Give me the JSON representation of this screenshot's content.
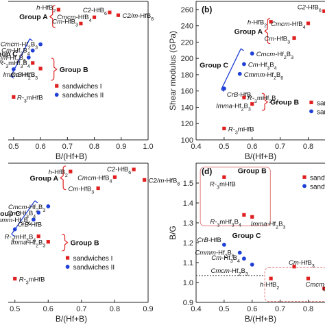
{
  "legend": {
    "sandwiches_1": "sandwiches I",
    "sandwiches_2": "sandwiches II"
  },
  "group_labels": {
    "a": "Group A",
    "b": "Group B",
    "c": "Group C"
  },
  "colors": {
    "sandwiches_1": "#e02020",
    "sandwiches_2": "#1f3fd6",
    "bracket_a_b": "#e02020",
    "bracket_c": "#1f3fd6",
    "box": "#e07a7a",
    "axis": "#222222"
  },
  "chart_data": [
    {
      "id": "a",
      "type": "scatter",
      "panel_label": "",
      "xlabel": "B/(Hf+B)",
      "ylabel": "",
      "xlim": [
        0.48,
        1.0
      ],
      "ylim": [
        0,
        10
      ],
      "x_ticks": [
        "0.5",
        "0.6",
        "0.7",
        "0.8",
        "0.9",
        "1.0"
      ],
      "y_ticks": [],
      "groups": [
        {
          "label": "Group A"
        },
        {
          "label": "Group C"
        },
        {
          "label": "Group B"
        }
      ],
      "points": [
        {
          "label": "h-HfB2",
          "x": 0.667,
          "y": 9.4,
          "series": "sandwiches I"
        },
        {
          "label": "C2-HfB6",
          "x": 0.857,
          "y": 9.2,
          "series": "sandwiches I"
        },
        {
          "label": "C2/m-HfB8",
          "x": 0.889,
          "y": 9.0,
          "series": "sandwiches I"
        },
        {
          "label": "Cmcm-HfB4",
          "x": 0.8,
          "y": 8.85,
          "series": "sandwiches I"
        },
        {
          "label": "Cm-HfB3",
          "x": 0.75,
          "y": 8.4,
          "series": "sandwiches I"
        },
        {
          "label": "Cmcm-Hf2B3",
          "x": 0.6,
          "y": 6.9,
          "series": "sandwiches II"
        },
        {
          "label": "Cm-Hf3B4",
          "x": 0.571,
          "y": 6.45,
          "series": "sandwiches II"
        },
        {
          "label": "Cmmm-Hf2B6",
          "x": 0.556,
          "y": 5.95,
          "series": "sandwiches II"
        },
        {
          "label": "R-3m-Hf3B4",
          "x": 0.571,
          "y": 5.55,
          "series": "sandwiches I"
        },
        {
          "label": "CrB-HfB",
          "x": 0.5,
          "y": 5.1,
          "series": "sandwiches II"
        },
        {
          "label": "Imma-Hf2B3",
          "x": 0.6,
          "y": 5.15,
          "series": "sandwiches I"
        },
        {
          "label": "R-3m-HfB",
          "x": 0.5,
          "y": 3.1,
          "series": "sandwiches I"
        }
      ]
    },
    {
      "id": "b",
      "type": "scatter",
      "panel_label": "(b)",
      "xlabel": "B/(Hf+B)",
      "ylabel": "Shear modulus (GPa)",
      "xlim": [
        0.4,
        0.86
      ],
      "ylim": [
        100,
        270
      ],
      "x_ticks": [
        "0.4",
        "0.5",
        "0.6",
        "0.7",
        "0.8"
      ],
      "y_ticks": [
        "100",
        "120",
        "140",
        "160",
        "180",
        "200",
        "220",
        "240",
        "260"
      ],
      "groups": [
        {
          "label": "Group A"
        },
        {
          "label": "Group C"
        },
        {
          "label": "Group B"
        }
      ],
      "legend_visible": [
        "sar",
        "sar"
      ],
      "points": [
        {
          "label": "C2-HfB6",
          "x": 0.857,
          "y": 258,
          "series": "sandwiches I"
        },
        {
          "label": "h-HfB2",
          "x": 0.667,
          "y": 245,
          "series": "sandwiches I"
        },
        {
          "label": "Cmcm-HfB4",
          "x": 0.8,
          "y": 243,
          "series": "sandwiches I"
        },
        {
          "label": "Cm-HfB3",
          "x": 0.75,
          "y": 225,
          "series": "sandwiches I"
        },
        {
          "label": "Cmcm-Hf2B3",
          "x": 0.6,
          "y": 206,
          "series": "sandwiches II"
        },
        {
          "label": "Cm-Hf3B4",
          "x": 0.571,
          "y": 193,
          "series": "sandwiches II"
        },
        {
          "label": "Cmmm-Hf2B6",
          "x": 0.556,
          "y": 181,
          "series": "sandwiches II"
        },
        {
          "label": "CrB-HfB",
          "x": 0.5,
          "y": 163,
          "series": "sandwiches II"
        },
        {
          "label": "R-3m-Hf3B4",
          "x": 0.571,
          "y": 152,
          "series": "sandwiches I"
        },
        {
          "label": "Imma-Hf2B3",
          "x": 0.6,
          "y": 144,
          "series": "sandwiches I"
        },
        {
          "label": "R-3m-HfB",
          "x": 0.5,
          "y": 114,
          "series": "sandwiches I"
        }
      ]
    },
    {
      "id": "c",
      "type": "scatter",
      "panel_label": "",
      "xlabel": "B/(Hf+B)",
      "ylabel": "",
      "xlim": [
        0.48,
        0.9
      ],
      "ylim": [
        0,
        10
      ],
      "x_ticks": [
        "0.5",
        "0.6",
        "0.7",
        "0.8",
        "0.9"
      ],
      "y_ticks": [],
      "groups": [
        {
          "label": "Group A"
        },
        {
          "label": "Group C"
        },
        {
          "label": "Group B"
        }
      ],
      "points": [
        {
          "label": "h-HfB2",
          "x": 0.667,
          "y": 9.4,
          "series": "sandwiches I"
        },
        {
          "label": "C2-HfB6",
          "x": 0.857,
          "y": 9.55,
          "series": "sandwiches I"
        },
        {
          "label": "Cmcm-HfB4",
          "x": 0.8,
          "y": 9.0,
          "series": "sandwiches I"
        },
        {
          "label": "C2/m-HfB8",
          "x": 0.889,
          "y": 8.8,
          "series": "sandwiches I"
        },
        {
          "label": "Cm-HfB3",
          "x": 0.75,
          "y": 8.2,
          "series": "sandwiches I"
        },
        {
          "label": "Cmcm-Hf2B3",
          "x": 0.6,
          "y": 6.9,
          "series": "sandwiches II"
        },
        {
          "label": "Cm-Hf3B4",
          "x": 0.571,
          "y": 6.45,
          "series": "sandwiches II"
        },
        {
          "label": "Cmmm-Hf2B6",
          "x": 0.556,
          "y": 5.95,
          "series": "sandwiches II"
        },
        {
          "label": "CrB-HfB",
          "x": 0.5,
          "y": 5.25,
          "series": "sandwiches II"
        },
        {
          "label": "R-3m-Hf3B4",
          "x": 0.571,
          "y": 4.75,
          "series": "sandwiches I"
        },
        {
          "label": "Imma-Hf2B3",
          "x": 0.6,
          "y": 4.35,
          "series": "sandwiches I"
        },
        {
          "label": "R-3m-HfB",
          "x": 0.5,
          "y": 1.7,
          "series": "sandwiches I"
        }
      ]
    },
    {
      "id": "d",
      "type": "scatter",
      "panel_label": "(d)",
      "xlabel": "B/(Hf+B)",
      "ylabel": "B/G",
      "xlim": [
        0.4,
        0.86
      ],
      "ylim": [
        0.9,
        1.6
      ],
      "x_ticks": [
        "0.4",
        "0.5",
        "0.6",
        "0.7",
        "0.8"
      ],
      "y_ticks": [
        "0.9",
        "1.0",
        "1.1",
        "1.2",
        "1.3",
        "1.4",
        "1.5"
      ],
      "groups": [
        {
          "label": "Group B"
        },
        {
          "label": "Group C"
        }
      ],
      "legend_visible": [
        "sandw",
        "sandw"
      ],
      "points": [
        {
          "label": "R-3m-HfB",
          "x": 0.5,
          "y": 1.53,
          "series": "sandwiches I"
        },
        {
          "label": "R-3m-Hf3B4",
          "x": 0.571,
          "y": 1.34,
          "series": "sandwiches I"
        },
        {
          "label": "Imma-Hf2B3",
          "x": 0.6,
          "y": 1.33,
          "series": "sandwiches I"
        },
        {
          "label": "CrB-HfB",
          "x": 0.5,
          "y": 1.19,
          "series": "sandwiches II"
        },
        {
          "label": "Cmmm-Hf2B6",
          "x": 0.556,
          "y": 1.15,
          "series": "sandwiches II"
        },
        {
          "label": "Cm-Hf3B4",
          "x": 0.571,
          "y": 1.12,
          "series": "sandwiches II"
        },
        {
          "label": "Cmcm-Hf2B3",
          "x": 0.6,
          "y": 1.09,
          "series": "sandwiches II"
        },
        {
          "label": "h-HfB2",
          "x": 0.667,
          "y": 1.02,
          "series": "sandwiches I"
        },
        {
          "label": "Cm-HfB3",
          "x": 0.75,
          "y": 1.08,
          "series": "sandwiches I"
        },
        {
          "label": "Cmcm-HfB4",
          "x": 0.8,
          "y": 1.02,
          "series": "sandwiches I"
        },
        {
          "label": "C2-HfB6",
          "x": 0.857,
          "y": 0.97,
          "series": "sandwiches I"
        }
      ]
    }
  ]
}
